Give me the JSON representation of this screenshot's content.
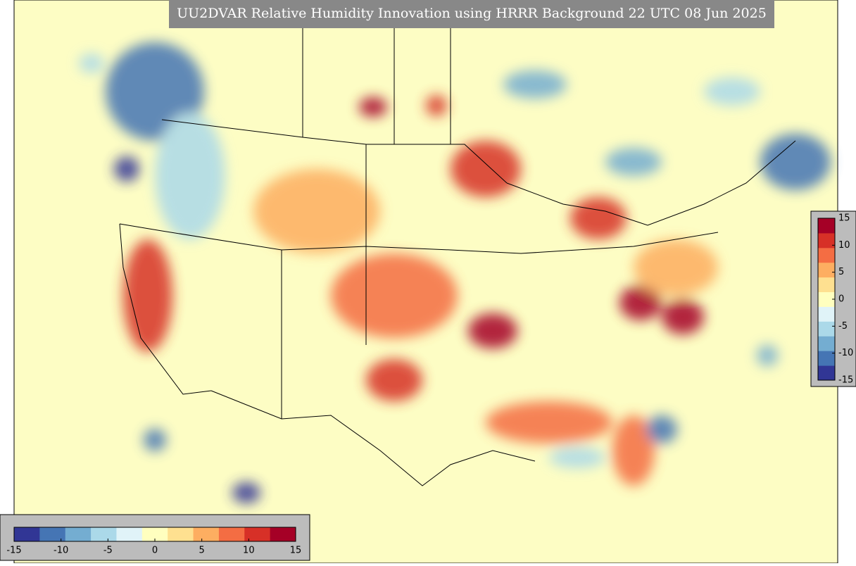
{
  "title": "UU2DVAR Relative Humidity Innovation using HRRR Background 22 UTC 08 Jun 2025",
  "colorbars": [
    {
      "orientation": "horizontal",
      "lim": [
        -15,
        15
      ],
      "ticks": [
        -15,
        -10,
        -5,
        0,
        5,
        10,
        15
      ],
      "colors": [
        "#313695",
        "#4575b4",
        "#74add1",
        "#abd9e9",
        "#e0f3f8",
        "#ffffbf",
        "#fee090",
        "#fdae61",
        "#f46d43",
        "#d73027",
        "#a50026"
      ]
    },
    {
      "orientation": "vertical",
      "lim": [
        -15,
        15
      ],
      "ticks": [
        15,
        10,
        5,
        0,
        -5,
        -10,
        -15
      ],
      "colors": [
        "#313695",
        "#4575b4",
        "#74add1",
        "#abd9e9",
        "#e0f3f8",
        "#ffffbf",
        "#fee090",
        "#fdae61",
        "#f46d43",
        "#d73027",
        "#a50026"
      ]
    }
  ]
}
